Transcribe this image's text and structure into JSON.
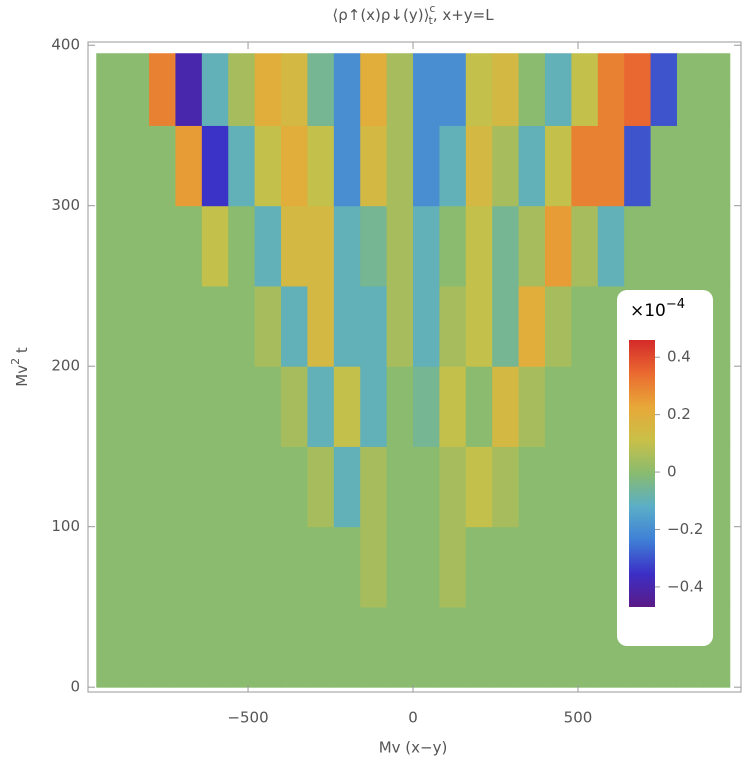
{
  "chart_data": {
    "type": "heatmap",
    "title": {
      "main": "⟨ρ↑(x)ρ↓(y)⟩",
      "sub": "t",
      "sup": "c",
      "rest": ", x+y=L"
    },
    "x_label": "Mv (x−y)",
    "y_label": {
      "main": "Mv",
      "sup": "2",
      "rest": " t"
    },
    "xlim": [
      -985,
      994
    ],
    "ylim": [
      -3,
      402
    ],
    "xticks": [
      {
        "value": -500,
        "label": "−500"
      },
      0,
      500
    ],
    "yticks": [
      0,
      100,
      200,
      300,
      400
    ],
    "x_bins": [
      -960,
      -880,
      -800,
      -720,
      -640,
      -560,
      -480,
      -400,
      -320,
      -240,
      -160,
      -80,
      0,
      80,
      160,
      240,
      320,
      400,
      480,
      560,
      640,
      720,
      800,
      880,
      960
    ],
    "y_bins": [
      0,
      50,
      100,
      150,
      200,
      250,
      300,
      350,
      395
    ],
    "z": [
      [
        0,
        0,
        0,
        0,
        0,
        0,
        0,
        0,
        0,
        0,
        0,
        0,
        0,
        0,
        0,
        0,
        0,
        0,
        0,
        0,
        0,
        0,
        0,
        0
      ],
      [
        0,
        0,
        0,
        0,
        0,
        0,
        0,
        0,
        0,
        0,
        0.05,
        0,
        0,
        0.05,
        0,
        0,
        0,
        0,
        0,
        0,
        0,
        0,
        0,
        0
      ],
      [
        0,
        0,
        0,
        0,
        0,
        0,
        0,
        0,
        0.05,
        -0.1,
        0.05,
        0,
        0,
        0.05,
        0.1,
        0.05,
        0,
        0,
        0,
        0,
        0,
        0,
        0,
        0
      ],
      [
        0,
        0,
        0,
        0,
        0,
        0,
        0,
        0.05,
        -0.1,
        0.1,
        -0.1,
        0,
        -0.05,
        0.1,
        0,
        0.15,
        0.05,
        0,
        0,
        0,
        0,
        0,
        0,
        0
      ],
      [
        0,
        0,
        0,
        0,
        0,
        0,
        0.05,
        -0.1,
        0.15,
        -0.1,
        -0.1,
        0.05,
        -0.1,
        0.05,
        0.1,
        -0.05,
        0.2,
        0.05,
        0,
        0,
        0,
        0,
        0,
        0
      ],
      [
        0,
        0,
        0,
        0,
        0.1,
        0,
        -0.1,
        0.15,
        0.15,
        -0.1,
        -0.05,
        0.05,
        -0.1,
        0,
        0.1,
        -0.05,
        0.05,
        0.25,
        0.05,
        -0.1,
        0,
        0,
        0,
        0
      ],
      [
        0,
        0,
        0,
        0.25,
        -0.35,
        -0.1,
        0.1,
        0.2,
        0.1,
        -0.2,
        0.15,
        0.05,
        -0.2,
        -0.1,
        0.15,
        0.05,
        -0.1,
        0.1,
        0.3,
        0.3,
        -0.3,
        0,
        0,
        0
      ],
      [
        0,
        0,
        0.3,
        -0.4,
        -0.1,
        0.05,
        0.2,
        0.15,
        -0.05,
        -0.2,
        0.2,
        0.05,
        -0.2,
        -0.2,
        0.1,
        0.15,
        0,
        -0.1,
        0.1,
        0.3,
        0.35,
        -0.3,
        0,
        0
      ]
    ],
    "zlim": [
      -0.47,
      0.46
    ],
    "colors": [
      "#5b1a86",
      "#3b2fc6",
      "#3f7fd6",
      "#5aaec8",
      "#88bb70",
      "#c9c048",
      "#e8a838",
      "#ea6a30",
      "#d42a2a"
    ],
    "colorbar_label": "×10",
    "colorbar_exponent": "−4",
    "colorbar_ticks": [
      {
        "value": -0.4,
        "label": "−0.4"
      },
      {
        "value": -0.2,
        "label": "−0.2"
      },
      0,
      0.2,
      0.4
    ]
  }
}
